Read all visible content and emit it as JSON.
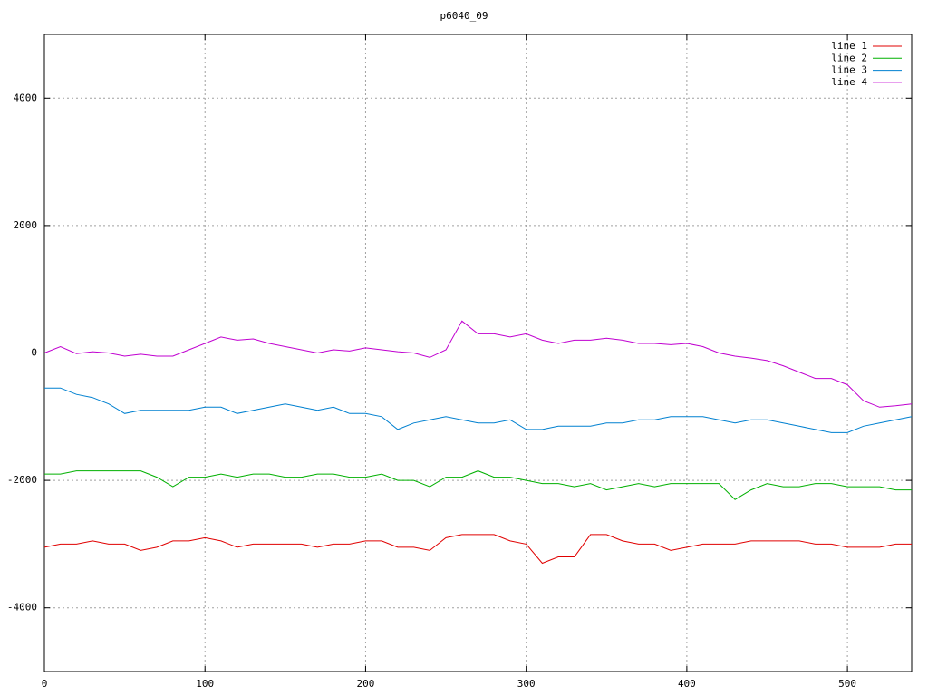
{
  "chart_data": {
    "type": "line",
    "title": "p6040_09",
    "x": [
      0,
      10,
      20,
      30,
      40,
      50,
      60,
      70,
      80,
      90,
      100,
      110,
      120,
      130,
      140,
      150,
      160,
      170,
      180,
      190,
      200,
      210,
      220,
      230,
      240,
      250,
      260,
      270,
      280,
      290,
      300,
      310,
      320,
      330,
      340,
      350,
      360,
      370,
      380,
      390,
      400,
      410,
      420,
      430,
      440,
      450,
      460,
      470,
      480,
      490,
      500,
      510,
      520,
      530,
      540
    ],
    "series": [
      {
        "name": "line 1",
        "color": "#e00000",
        "values": [
          -3050,
          -3000,
          -3000,
          -2950,
          -3000,
          -3000,
          -3100,
          -3050,
          -2950,
          -2950,
          -2900,
          -2950,
          -3050,
          -3000,
          -3000,
          -3000,
          -3000,
          -3050,
          -3000,
          -3000,
          -2950,
          -2950,
          -3050,
          -3050,
          -3100,
          -2900,
          -2850,
          -2850,
          -2850,
          -2950,
          -3000,
          -3300,
          -3200,
          -3200,
          -2850,
          -2850,
          -2950,
          -3000,
          -3000,
          -3100,
          -3050,
          -3000,
          -3000,
          -3000,
          -2950,
          -2950,
          -2950,
          -2950,
          -3000,
          -3000,
          -3050,
          -3050,
          -3050,
          -3000,
          -3000
        ]
      },
      {
        "name": "line 2",
        "color": "#00b000",
        "values": [
          -1900,
          -1900,
          -1850,
          -1850,
          -1850,
          -1850,
          -1850,
          -1950,
          -2100,
          -1950,
          -1950,
          -1900,
          -1950,
          -1900,
          -1900,
          -1950,
          -1950,
          -1900,
          -1900,
          -1950,
          -1950,
          -1900,
          -2000,
          -2000,
          -2100,
          -1950,
          -1950,
          -1850,
          -1950,
          -1950,
          -2000,
          -2050,
          -2050,
          -2100,
          -2050,
          -2150,
          -2100,
          -2050,
          -2100,
          -2050,
          -2050,
          -2050,
          -2050,
          -2300,
          -2150,
          -2050,
          -2100,
          -2100,
          -2050,
          -2050,
          -2100,
          -2100,
          -2100,
          -2150,
          -2150
        ]
      },
      {
        "name": "line 3",
        "color": "#0080d0",
        "values": [
          -550,
          -550,
          -650,
          -700,
          -800,
          -950,
          -900,
          -900,
          -900,
          -900,
          -850,
          -850,
          -950,
          -900,
          -850,
          -800,
          -850,
          -900,
          -850,
          -950,
          -950,
          -1000,
          -1200,
          -1100,
          -1050,
          -1000,
          -1050,
          -1100,
          -1100,
          -1050,
          -1200,
          -1200,
          -1150,
          -1150,
          -1150,
          -1100,
          -1100,
          -1050,
          -1050,
          -1000,
          -1000,
          -1000,
          -1050,
          -1100,
          -1050,
          -1050,
          -1100,
          -1150,
          -1200,
          -1250,
          -1250,
          -1150,
          -1100,
          -1050,
          -1000
        ]
      },
      {
        "name": "line 4",
        "color": "#c000d0",
        "values": [
          0,
          100,
          -10,
          20,
          0,
          -50,
          -20,
          -50,
          -50,
          50,
          150,
          250,
          200,
          220,
          150,
          100,
          50,
          0,
          50,
          30,
          80,
          50,
          20,
          0,
          -70,
          50,
          500,
          300,
          300,
          250,
          300,
          200,
          150,
          200,
          200,
          230,
          200,
          150,
          150,
          130,
          150,
          100,
          0,
          -50,
          -80,
          -120,
          -200,
          -300,
          -400,
          -400,
          -500,
          -750,
          -850,
          -830,
          -800
        ]
      }
    ],
    "xlim": [
      0,
      540
    ],
    "xticks": [
      0,
      100,
      200,
      300,
      400,
      500
    ],
    "ylim": [
      -5000,
      5000
    ],
    "yticks": [
      -4000,
      -2000,
      0,
      2000,
      4000
    ],
    "grid": true,
    "legend": "top-right"
  }
}
